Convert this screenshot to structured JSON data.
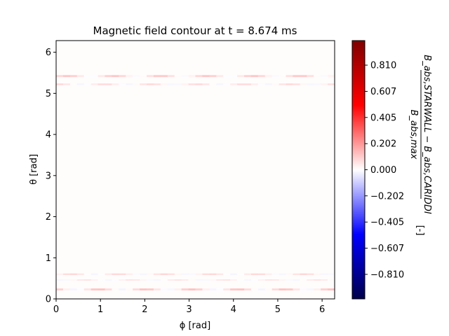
{
  "chart_data": {
    "type": "heatmap",
    "title": "Magnetic field contour at t = 8.674 ms",
    "xlabel": "ϕ [rad]",
    "ylabel": "θ [rad]",
    "xlim": [
      0,
      6.283
    ],
    "ylim": [
      0,
      6.283
    ],
    "x_ticks": [
      0,
      1,
      2,
      3,
      4,
      5,
      6
    ],
    "y_ticks": [
      0,
      1,
      2,
      3,
      4,
      5,
      6
    ],
    "colormap": "seismic",
    "colorbar": {
      "label_numerator": "B_abs,STARWALL − B_abs,CARIDDI",
      "label_denominator": "B_abs,max",
      "label_unit": "[-]",
      "range": [
        -1.0,
        1.0
      ],
      "ticks": [
        -0.81,
        -0.607,
        -0.405,
        -0.202,
        0.0,
        0.202,
        0.405,
        0.607,
        0.81
      ],
      "tick_labels": [
        "−0.810",
        "−0.607",
        "−0.405",
        "−0.202",
        "0.000",
        "0.202",
        "0.405",
        "0.607",
        "0.810"
      ]
    },
    "bands": [
      {
        "theta": 5.42,
        "width": 0.05,
        "value": 0.05,
        "ripple": 0.06
      },
      {
        "theta": 5.22,
        "width": 0.04,
        "value": 0.03,
        "ripple": 0.05
      },
      {
        "theta": 0.6,
        "width": 0.04,
        "value": 0.03,
        "ripple": -0.05
      },
      {
        "theta": 0.46,
        "width": 0.03,
        "value": 0.02,
        "ripple": 0.04
      },
      {
        "theta": 0.23,
        "width": 0.05,
        "value": 0.05,
        "ripple": -0.07
      }
    ],
    "background_value": 0.005,
    "grid": false,
    "legend": "none"
  }
}
